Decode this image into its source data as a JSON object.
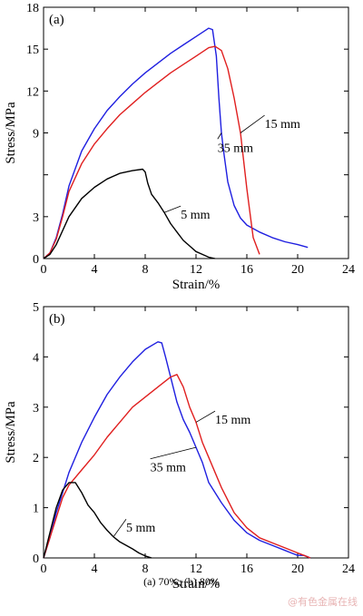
{
  "caption": "(a) 70%; (b) 80%",
  "watermark": "@有色金属在线",
  "colors": {
    "blue": "#1f1fe0",
    "red": "#e01f1f",
    "black": "#000000"
  },
  "chart_data": [
    {
      "type": "line",
      "panel_label": "(a)",
      "xlabel": "Strain/%",
      "ylabel": "Stress/MPa",
      "xlim": [
        0,
        24
      ],
      "ylim": [
        0,
        18
      ],
      "xticks": [
        0,
        4,
        8,
        12,
        16,
        20,
        24
      ],
      "yticks": [
        0,
        3,
        6,
        9,
        12,
        15,
        18
      ],
      "ytick_labels": [
        "0",
        "3",
        "",
        "9",
        "12",
        "15",
        "18"
      ],
      "series": [
        {
          "name": "35 mm",
          "color": "#1f1fe0",
          "x": [
            0,
            0.5,
            1,
            1.5,
            2,
            3,
            4,
            5,
            6,
            7,
            8,
            9,
            10,
            11,
            12,
            13,
            13.3,
            13.6,
            13.8,
            14,
            14.2,
            14.5,
            15,
            15.5,
            16,
            17,
            18,
            19,
            20,
            20.8
          ],
          "y": [
            0,
            0.4,
            1.5,
            3.2,
            5.2,
            7.7,
            9.3,
            10.6,
            11.6,
            12.5,
            13.3,
            14.0,
            14.7,
            15.3,
            15.9,
            16.5,
            16.4,
            14.5,
            11.5,
            9.0,
            7.5,
            5.5,
            3.8,
            2.9,
            2.4,
            1.9,
            1.5,
            1.2,
            1.0,
            0.8
          ]
        },
        {
          "name": "15 mm",
          "color": "#e01f1f",
          "x": [
            0,
            0.5,
            1,
            1.5,
            2,
            3,
            4,
            5,
            6,
            7,
            8,
            9,
            10,
            11,
            12,
            13,
            13.5,
            14,
            14.5,
            15,
            15.5,
            16,
            16.5,
            17
          ],
          "y": [
            0,
            0.4,
            1.4,
            3.0,
            4.8,
            6.8,
            8.2,
            9.3,
            10.3,
            11.1,
            11.9,
            12.6,
            13.3,
            13.9,
            14.5,
            15.1,
            15.2,
            14.9,
            13.6,
            11.5,
            9.0,
            5.0,
            1.5,
            0.3
          ]
        },
        {
          "name": "5 mm",
          "color": "#000000",
          "x": [
            0,
            0.5,
            1,
            1.5,
            2,
            3,
            4,
            5,
            6,
            7,
            7.8,
            8,
            8.2,
            8.5,
            9,
            9.5,
            10,
            10.5,
            11,
            11.5,
            12,
            12.5,
            13,
            13.5
          ],
          "y": [
            0,
            0.3,
            1.0,
            2.0,
            3.0,
            4.3,
            5.1,
            5.7,
            6.1,
            6.3,
            6.4,
            6.2,
            5.4,
            4.6,
            4.0,
            3.3,
            2.5,
            1.9,
            1.3,
            0.9,
            0.5,
            0.3,
            0.1,
            0
          ]
        }
      ],
      "annotations": [
        {
          "text": "35 mm",
          "x": 13.7,
          "y": 8.3
        },
        {
          "text": "15 mm",
          "x": 17.4,
          "y": 10.0
        },
        {
          "text": "5 mm",
          "x": 10.8,
          "y": 3.5
        }
      ]
    },
    {
      "type": "line",
      "panel_label": "(b)",
      "xlabel": "Strain/%",
      "ylabel": "Stress/MPa",
      "xlim": [
        0,
        24
      ],
      "ylim": [
        0,
        5
      ],
      "xticks": [
        0,
        4,
        8,
        12,
        16,
        20,
        24
      ],
      "yticks": [
        0,
        1,
        2,
        3,
        4,
        5
      ],
      "ytick_labels": [
        "0",
        "1",
        "2",
        "3",
        "4",
        "5"
      ],
      "series": [
        {
          "name": "35 mm",
          "color": "#1f1fe0",
          "x": [
            0,
            0.5,
            1,
            1.5,
            2,
            3,
            4,
            5,
            6,
            7,
            8,
            9,
            9.3,
            9.6,
            10,
            10.5,
            11,
            11.5,
            12,
            12.5,
            13,
            13.5,
            14,
            15,
            16,
            17,
            18,
            19,
            19.5,
            20,
            20.5,
            21
          ],
          "y": [
            0,
            0.4,
            0.9,
            1.3,
            1.7,
            2.3,
            2.8,
            3.25,
            3.6,
            3.9,
            4.15,
            4.3,
            4.28,
            4.0,
            3.6,
            3.1,
            2.75,
            2.5,
            2.2,
            1.9,
            1.5,
            1.3,
            1.1,
            0.75,
            0.5,
            0.35,
            0.25,
            0.15,
            0.1,
            0.05,
            0.05,
            0
          ]
        },
        {
          "name": "15 mm",
          "color": "#e01f1f",
          "x": [
            0,
            0.5,
            1,
            1.5,
            2,
            3,
            4,
            5,
            6,
            7,
            8,
            9,
            10,
            10.5,
            11,
            11.5,
            12,
            12.5,
            13,
            13.5,
            14,
            15,
            16,
            17,
            18,
            19,
            20,
            20.5,
            21
          ],
          "y": [
            0,
            0.4,
            0.8,
            1.2,
            1.45,
            1.75,
            2.05,
            2.4,
            2.7,
            3.0,
            3.2,
            3.4,
            3.6,
            3.65,
            3.4,
            3.0,
            2.7,
            2.3,
            2.0,
            1.7,
            1.4,
            0.9,
            0.6,
            0.4,
            0.3,
            0.2,
            0.1,
            0.05,
            0
          ]
        },
        {
          "name": "5 mm",
          "color": "#000000",
          "x": [
            0,
            0.5,
            1,
            1.5,
            2,
            2.5,
            3,
            3.5,
            4,
            4.5,
            5,
            5.5,
            6,
            6.5,
            7,
            7.5,
            8,
            8.5
          ],
          "y": [
            0,
            0.5,
            1.0,
            1.35,
            1.5,
            1.5,
            1.3,
            1.05,
            0.9,
            0.7,
            0.55,
            0.42,
            0.32,
            0.25,
            0.18,
            0.1,
            0.04,
            0
          ]
        }
      ],
      "annotations": [
        {
          "text": "15 mm",
          "x": 13.5,
          "y": 2.85
        },
        {
          "text": "35 mm",
          "x": 8.4,
          "y": 1.9
        },
        {
          "text": "5 mm",
          "x": 6.5,
          "y": 0.7
        }
      ]
    }
  ]
}
